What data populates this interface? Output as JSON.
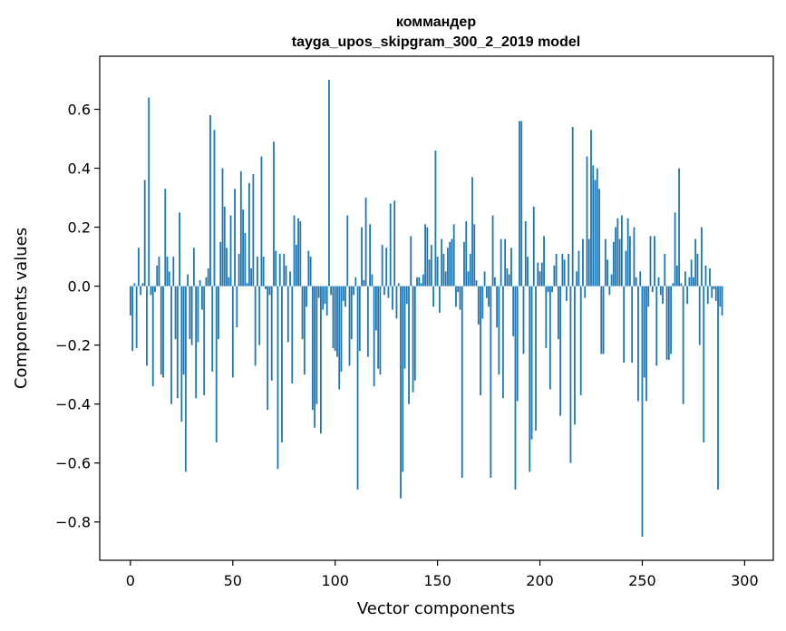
{
  "chart_data": {
    "type": "bar",
    "title": "коммандер",
    "subtitle": "tayga_upos_skipgram_300_2_2019 model",
    "xlabel": "Vector components",
    "ylabel": "Components values",
    "xlim": [
      -15,
      314
    ],
    "ylim": [
      -0.93,
      0.78
    ],
    "xticks": [
      0,
      50,
      100,
      150,
      200,
      250,
      300
    ],
    "yticks": [
      -0.8,
      -0.6,
      -0.4,
      -0.2,
      0.0,
      0.2,
      0.4,
      0.6
    ],
    "ytick_labels": [
      "−0.8",
      "−0.6",
      "−0.4",
      "−0.2",
      "0.0",
      "0.2",
      "0.4",
      "0.6"
    ],
    "color": "#1f77b4",
    "values": [
      -0.1,
      -0.22,
      0.01,
      -0.21,
      0.13,
      -0.03,
      0.01,
      0.36,
      -0.27,
      0.64,
      -0.03,
      -0.34,
      -0.02,
      0.07,
      0.1,
      -0.3,
      -0.31,
      0.33,
      0.1,
      0.05,
      -0.4,
      0.1,
      -0.18,
      -0.38,
      0.25,
      -0.46,
      -0.3,
      -0.63,
      0.04,
      -0.18,
      -0.2,
      0.13,
      -0.38,
      -0.19,
      0.02,
      -0.08,
      -0.37,
      0.03,
      0.06,
      0.58,
      -0.29,
      0.53,
      -0.53,
      -0.18,
      0.15,
      0.4,
      0.27,
      0.13,
      0.03,
      0.24,
      -0.31,
      0.33,
      -0.14,
      0.11,
      0.39,
      0.26,
      0.18,
      0.01,
      0.35,
      0.06,
      0.38,
      -0.27,
      0.1,
      -0.2,
      0.44,
      0.1,
      -0.01,
      -0.42,
      -0.03,
      -0.32,
      0.49,
      0.12,
      -0.62,
      0.11,
      -0.53,
      0.11,
      0.07,
      -0.19,
      0.05,
      -0.33,
      0.24,
      0.14,
      0.23,
      0.22,
      -0.18,
      -0.3,
      -0.07,
      0.12,
      0.1,
      -0.42,
      -0.48,
      -0.4,
      -0.04,
      -0.5,
      -0.08,
      -0.06,
      -0.1,
      0.7,
      -0.03,
      -0.21,
      -0.22,
      -0.24,
      -0.35,
      -0.29,
      -0.05,
      -0.07,
      0.24,
      -0.27,
      -0.18,
      -0.03,
      0.03,
      -0.69,
      -0.22,
      0.2,
      0.02,
      0.3,
      -0.24,
      0.21,
      0.04,
      -0.34,
      -0.15,
      -0.28,
      -0.3,
      0.14,
      -0.03,
      0.13,
      -0.04,
      0.28,
      -0.08,
      0.29,
      -0.11,
      0.01,
      -0.72,
      -0.63,
      -0.28,
      -0.06,
      -0.4,
      0.17,
      -0.36,
      -0.32,
      0.03,
      0.03,
      0.01,
      0.04,
      0.21,
      0.2,
      0.09,
      0.14,
      -0.07,
      0.46,
      0.1,
      -0.09,
      0.16,
      0.11,
      0.05,
      0.13,
      0.15,
      0.16,
      0.21,
      -0.07,
      -0.02,
      -0.08,
      -0.65,
      0.15,
      0.22,
      0.05,
      0.11,
      0.37,
      0.21,
      0.02,
      -0.13,
      -0.37,
      -0.11,
      0.05,
      -0.04,
      -0.07,
      -0.65,
      0.24,
      0.03,
      -0.14,
      -0.3,
      0.16,
      -0.38,
      0.16,
      0.06,
      0.04,
      0.13,
      -0.17,
      -0.69,
      -0.39,
      0.56,
      0.56,
      -0.23,
      0.22,
      0.1,
      -0.63,
      -0.52,
      0.27,
      -0.49,
      0.08,
      0.05,
      0.08,
      0.17,
      -0.21,
      -0.02,
      -0.35,
      -0.02,
      0.07,
      0.11,
      -0.18,
      -0.44,
      0.11,
      0.09,
      -0.05,
      0.11,
      -0.6,
      0.54,
      -0.47,
      0.05,
      0.12,
      -0.37,
      0.16,
      -0.04,
      0.44,
      0.16,
      0.53,
      0.41,
      0.36,
      0.4,
      0.33,
      -0.23,
      -0.23,
      0.16,
      0.09,
      -0.03,
      0.04,
      0.15,
      0.2,
      0.23,
      0.16,
      0.24,
      -0.26,
      0.12,
      0.23,
      0.17,
      -0.26,
      0.2,
      0.03,
      -0.39,
      0.05,
      -0.85,
      -0.31,
      -0.39,
      -0.07,
      0.17,
      -0.02,
      0.17,
      -0.27,
      0.03,
      -0.03,
      -0.06,
      0.11,
      -0.25,
      -0.25,
      -0.23,
      0.01,
      0.25,
      0.07,
      0.4,
      0.01,
      -0.4,
      0.05,
      -0.06,
      0.03,
      0.09,
      0.03,
      0.16,
      0.11,
      -0.2,
      0.2,
      -0.53,
      0.07,
      -0.06,
      0.06,
      -0.04,
      -0.01,
      -0.05,
      -0.69,
      -0.07,
      -0.1
    ]
  }
}
